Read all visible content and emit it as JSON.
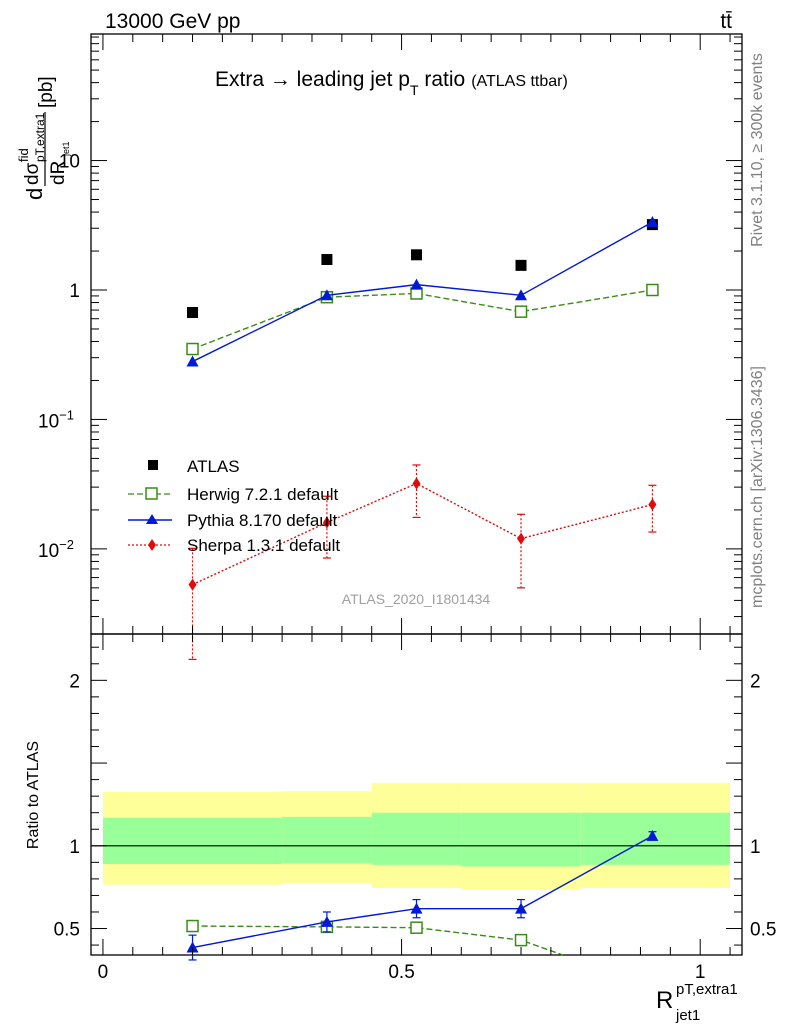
{
  "header": {
    "left": "13000 GeV pp",
    "right": "tt̄"
  },
  "side_labels": {
    "rivet": "Rivet 3.1.10, ≥ 300k events",
    "mcplots": "mcplots.cern.ch [arXiv:1306.3436]"
  },
  "main_panel": {
    "title": "Extra → leading jet p",
    "title_sub": "T",
    "title_tail": " ratio",
    "title_note": "(ATLAS ttbar)",
    "ylabel_prefix": "d",
    "ylabel_num": "dσ",
    "ylabel_num_sup": "fid",
    "ylabel_num_sub": "pT,extra1",
    "ylabel_den": "dR",
    "ylabel_den_sub": "jet1",
    "ylabel_unit": "[pb]",
    "analysis_id": "ATLAS_2020_I1801434",
    "y_ticks": [
      {
        "value": 0.01,
        "base": "10",
        "exp": "−2"
      },
      {
        "value": 0.1,
        "base": "10",
        "exp": "−1"
      },
      {
        "value": 1,
        "label": "1"
      },
      {
        "value": 10,
        "label": "10"
      }
    ]
  },
  "ratio_panel": {
    "ylabel": "Ratio to ATLAS",
    "y_ticks": [
      {
        "value": 0.5,
        "label": "0.5"
      },
      {
        "value": 1,
        "label": "1"
      },
      {
        "value": 2,
        "label": "2"
      }
    ]
  },
  "x_axis": {
    "label_main": "R",
    "label_sup": "pT,extra1",
    "label_sub": "jet1",
    "ticks": [
      {
        "value": 0,
        "label": "0"
      },
      {
        "value": 0.5,
        "label": "0.5"
      },
      {
        "value": 1,
        "label": "1"
      }
    ]
  },
  "legend": [
    {
      "key": "atlas",
      "label": "ATLAS"
    },
    {
      "key": "herwig",
      "label": "Herwig 7.2.1 default"
    },
    {
      "key": "pythia",
      "label": "Pythia 8.170 default"
    },
    {
      "key": "sherpa",
      "label": "Sherpa 1.3.1 default"
    }
  ],
  "chart_data": [
    {
      "type": "scatter",
      "panel": "main",
      "xlim": [
        -0.02,
        1.07
      ],
      "ylim": [
        0.0022,
        95
      ],
      "yscale": "log",
      "grid": false,
      "legend_position": "lower-left",
      "series": [
        {
          "name": "ATLAS",
          "key": "atlas",
          "color": "#000000",
          "x": [
            0.15,
            0.375,
            0.525,
            0.7,
            0.92
          ],
          "y": [
            0.67,
            1.72,
            1.87,
            1.55,
            3.2
          ]
        },
        {
          "name": "Herwig 7.2.1 default",
          "key": "herwig",
          "color": "#3a8c16",
          "x": [
            0.15,
            0.375,
            0.525,
            0.7,
            0.92
          ],
          "y": [
            0.35,
            0.88,
            0.94,
            0.68,
            1.0
          ]
        },
        {
          "name": "Pythia 8.170 default",
          "key": "pythia",
          "color": "#0019d6",
          "x": [
            0.15,
            0.375,
            0.525,
            0.7,
            0.92
          ],
          "y": [
            0.28,
            0.91,
            1.1,
            0.91,
            3.35
          ]
        },
        {
          "name": "Sherpa 1.3.1 default",
          "key": "sherpa",
          "color": "#e00b0b",
          "x": [
            0.15,
            0.375,
            0.525,
            0.7,
            0.92
          ],
          "y": [
            0.0053,
            0.016,
            0.032,
            0.012,
            0.022
          ],
          "err_low": [
            0.0039,
            0.0075,
            0.0145,
            0.007,
            0.0085
          ],
          "err_high": [
            0.0048,
            0.0095,
            0.0125,
            0.0065,
            0.009
          ]
        }
      ]
    },
    {
      "type": "line",
      "panel": "ratio",
      "xlim": [
        -0.02,
        1.07
      ],
      "ylim": [
        0.34,
        2.28
      ],
      "grid": false,
      "bands": {
        "edges": [
          0.0,
          0.3,
          0.45,
          0.6,
          0.8,
          1.05
        ],
        "yellow": [
          [
            0.765,
            1.325
          ],
          [
            0.775,
            1.33
          ],
          [
            0.745,
            1.38
          ],
          [
            0.735,
            1.38
          ],
          [
            0.745,
            1.38
          ]
        ],
        "green": [
          [
            0.89,
            1.17
          ],
          [
            0.895,
            1.175
          ],
          [
            0.885,
            1.2
          ],
          [
            0.875,
            1.2
          ],
          [
            0.885,
            1.2
          ]
        ]
      },
      "series": [
        {
          "name": "Herwig 7.2.1 default",
          "key": "herwig",
          "color": "#3a8c16",
          "x": [
            0.15,
            0.375,
            0.525,
            0.7,
            0.77
          ],
          "y": [
            0.515,
            0.51,
            0.505,
            0.43,
            0.34
          ],
          "err": [
            0.012,
            0.012,
            0.012,
            0.012,
            0
          ]
        },
        {
          "name": "Pythia 8.170 default",
          "key": "pythia",
          "color": "#0019d6",
          "x": [
            0.15,
            0.375,
            0.525,
            0.7,
            0.92
          ],
          "y": [
            0.385,
            0.54,
            0.62,
            0.62,
            1.06
          ],
          "err": [
            0.075,
            0.06,
            0.055,
            0.055,
            0.025
          ]
        }
      ]
    }
  ]
}
